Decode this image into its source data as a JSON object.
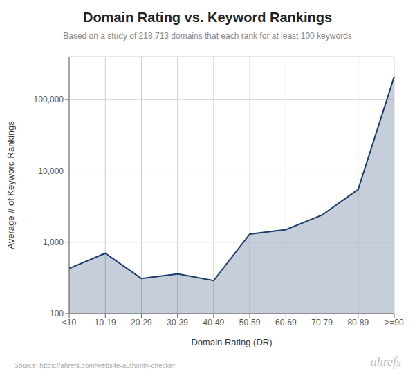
{
  "chart_data": {
    "type": "area",
    "title": "Domain Rating vs. Keyword Rankings",
    "subtitle": "Based on a study of 218,713 domains that each rank for at least 100 keywords",
    "xlabel": "Domain Rating (DR)",
    "ylabel": "Average # of Keyword Rankings",
    "annotations": [
      "Source: https://ahrefs.com/website-authority-checker",
      "ahrefs"
    ],
    "categories": [
      "<10",
      "10-19",
      "20-29",
      "30-39",
      "40-49",
      "50-59",
      "60-69",
      "70-79",
      "80-89",
      ">=90"
    ],
    "values": [
      430,
      700,
      310,
      360,
      290,
      1300,
      1500,
      2400,
      5500,
      210000
    ],
    "color": "#1a3a6b",
    "log": "y",
    "ylim": [
      100,
      400000
    ],
    "yticks": [
      100,
      {
        "value": 1000,
        "label": "1,000"
      },
      {
        "value": 10000,
        "label": "10,000"
      },
      {
        "value": 100000,
        "label": "100,000"
      }
    ],
    "grid": true
  }
}
